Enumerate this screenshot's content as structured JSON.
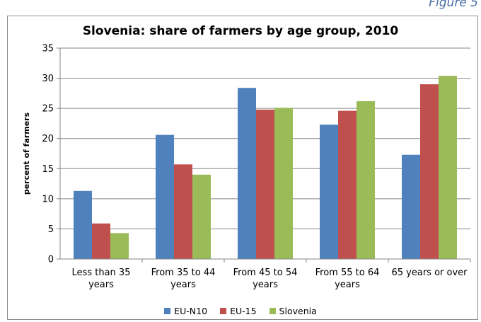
{
  "figure_label": "Figure 5",
  "chart_data": {
    "type": "bar",
    "title": "Slovenia: share of farmers by age group, 2010",
    "xlabel": "",
    "ylabel": "percent of farmers",
    "ylim": [
      0,
      35
    ],
    "yticks": [
      0,
      5,
      10,
      15,
      20,
      25,
      30,
      35
    ],
    "categories": [
      [
        "Less than 35",
        "years"
      ],
      [
        "From 35 to 44",
        "years"
      ],
      [
        "From 45 to 54",
        "years"
      ],
      [
        "From 55 to 64",
        "years"
      ],
      [
        "65 years or over"
      ]
    ],
    "series": [
      {
        "name": "EU-N10",
        "color": "#4f81bd",
        "values": [
          11.3,
          20.6,
          28.4,
          22.3,
          17.3
        ]
      },
      {
        "name": "EU-15",
        "color": "#c0504d",
        "values": [
          5.9,
          15.7,
          24.8,
          24.6,
          29.0
        ]
      },
      {
        "name": "Slovenia",
        "color": "#9bbb59",
        "values": [
          4.3,
          14.0,
          25.1,
          26.2,
          30.4
        ]
      }
    ],
    "grid": true,
    "legend_position": "bottom"
  }
}
